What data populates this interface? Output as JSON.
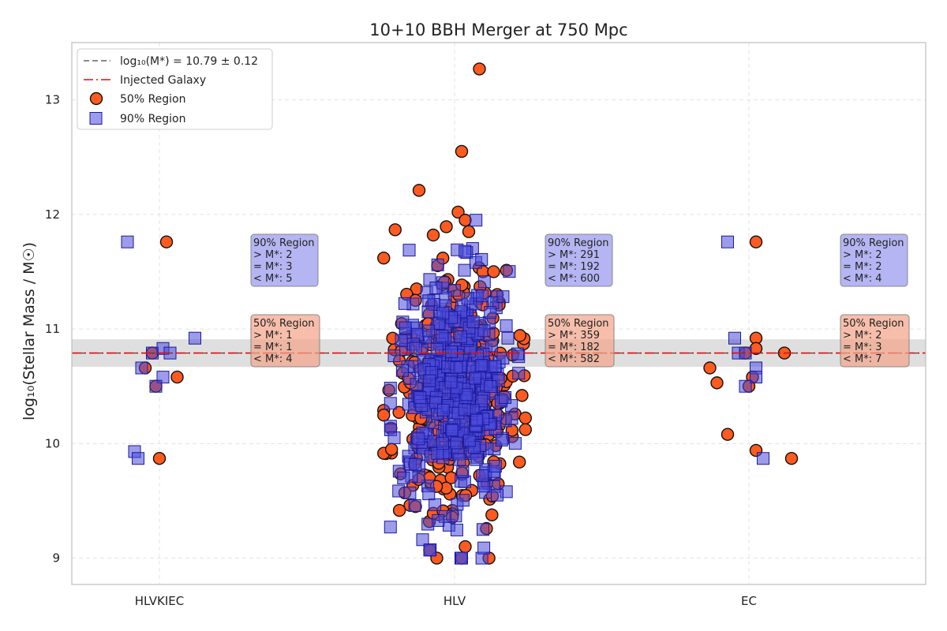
{
  "chart_data": {
    "type": "scatter",
    "title": "10+10 BBH Merger at 750 Mpc",
    "xlabel": "",
    "ylabel": "log₁₀(Stellar Mass / M☉)",
    "categories": [
      "HLVKIEC",
      "HLV",
      "EC"
    ],
    "ylim": [
      8.77,
      13.5
    ],
    "yticks": [
      9,
      10,
      11,
      12,
      13
    ],
    "grid": true,
    "estimated_mass": {
      "label": "log₁₀(M*) = 10.79 ± 0.12",
      "value": 10.79,
      "uncertainty": 0.12
    },
    "injected_galaxy": {
      "label": "Injected Galaxy",
      "value": 10.79
    },
    "legend": {
      "placement": "top-left",
      "entries": [
        "log₁₀(M*) = 10.79 ± 0.12",
        "Injected Galaxy",
        "50% Region",
        "90% Region"
      ]
    },
    "colors": {
      "region50": "#ff5a1f",
      "region90": "#4a4ad9",
      "injected": "#e01010",
      "estimate": "#444444",
      "band": "#b8b8b8"
    },
    "series": [
      {
        "name": "50% Region",
        "category": "HLVKIEC",
        "points": [
          [
            -0.1,
            10.79
          ],
          [
            0.1,
            11.76
          ],
          [
            -0.2,
            10.66
          ],
          [
            -0.05,
            10.5
          ],
          [
            0.25,
            10.58
          ],
          [
            0.0,
            9.87
          ]
        ]
      },
      {
        "name": "90% Region",
        "category": "HLVKIEC",
        "points": [
          [
            -0.45,
            11.76
          ],
          [
            -0.1,
            10.79
          ],
          [
            0.05,
            10.83
          ],
          [
            0.15,
            10.79
          ],
          [
            -0.25,
            10.66
          ],
          [
            0.05,
            10.58
          ],
          [
            -0.05,
            10.5
          ],
          [
            -0.35,
            9.93
          ],
          [
            -0.3,
            9.87
          ],
          [
            0.5,
            10.92
          ]
        ]
      },
      {
        "name": "50% Region",
        "category": "EC",
        "points": [
          [
            -0.55,
            10.66
          ],
          [
            -0.45,
            10.53
          ],
          [
            -0.3,
            10.08
          ],
          [
            0.1,
            10.92
          ],
          [
            -0.05,
            10.79
          ],
          [
            0.1,
            10.83
          ],
          [
            0.05,
            10.58
          ],
          [
            0.0,
            10.5
          ],
          [
            0.1,
            9.94
          ],
          [
            0.5,
            10.79
          ],
          [
            0.6,
            9.87
          ],
          [
            0.1,
            11.76
          ]
        ]
      },
      {
        "name": "90% Region",
        "category": "EC",
        "points": [
          [
            -0.3,
            11.76
          ],
          [
            -0.2,
            10.92
          ],
          [
            -0.15,
            10.79
          ],
          [
            -0.05,
            10.79
          ],
          [
            0.1,
            10.66
          ],
          [
            0.1,
            10.58
          ],
          [
            -0.05,
            10.5
          ],
          [
            0.2,
            9.87
          ]
        ]
      },
      {
        "name": "50% Region",
        "category": "HLV",
        "count": 1123,
        "outliers": [
          [
            0.35,
            13.27
          ],
          [
            0.1,
            12.55
          ],
          [
            -0.5,
            12.21
          ],
          [
            0.05,
            12.02
          ],
          [
            0.15,
            11.95
          ],
          [
            0.2,
            11.85
          ],
          [
            -0.3,
            11.82
          ],
          [
            0.4,
            11.5
          ],
          [
            0.55,
            11.5
          ],
          [
            -0.55,
            11.25
          ],
          [
            -0.65,
            10.57
          ],
          [
            0.65,
            10.57
          ],
          [
            0.6,
            10.1
          ],
          [
            -0.7,
            9.57
          ],
          [
            -0.55,
            9.45
          ],
          [
            0.15,
            9.1
          ],
          [
            -0.35,
            9.07
          ],
          [
            -0.25,
            9.0
          ]
        ]
      },
      {
        "name": "90% Region",
        "category": "HLV",
        "count": 1083,
        "outliers": [
          [
            -0.9,
            10.12
          ],
          [
            -0.85,
            10.05
          ],
          [
            0.75,
            10.92
          ],
          [
            0.4,
            9.25
          ],
          [
            -0.35,
            9.07
          ],
          [
            0.1,
            9.0
          ],
          [
            0.6,
            9.55
          ],
          [
            -0.75,
            10.9
          ]
        ]
      }
    ],
    "annotations": [
      {
        "category": "HLVKIEC",
        "region": "90% Region",
        "lines": [
          "90% Region",
          "> M*: 2",
          "= M*: 3",
          "< M*: 5"
        ]
      },
      {
        "category": "HLVKIEC",
        "region": "50% Region",
        "lines": [
          "50% Region",
          "> M*: 1",
          "= M*: 1",
          "< M*: 4"
        ]
      },
      {
        "category": "HLV",
        "region": "90% Region",
        "lines": [
          "90% Region",
          "> M*: 291",
          "= M*: 192",
          "< M*: 600"
        ]
      },
      {
        "category": "HLV",
        "region": "50% Region",
        "lines": [
          "50% Region",
          "> M*: 359",
          "= M*: 182",
          "< M*: 582"
        ]
      },
      {
        "category": "EC",
        "region": "90% Region",
        "lines": [
          "90% Region",
          "> M*: 2",
          "= M*: 2",
          "< M*: 4"
        ]
      },
      {
        "category": "EC",
        "region": "50% Region",
        "lines": [
          "50% Region",
          "> M*: 2",
          "= M*: 3",
          "< M*: 7"
        ]
      }
    ]
  }
}
